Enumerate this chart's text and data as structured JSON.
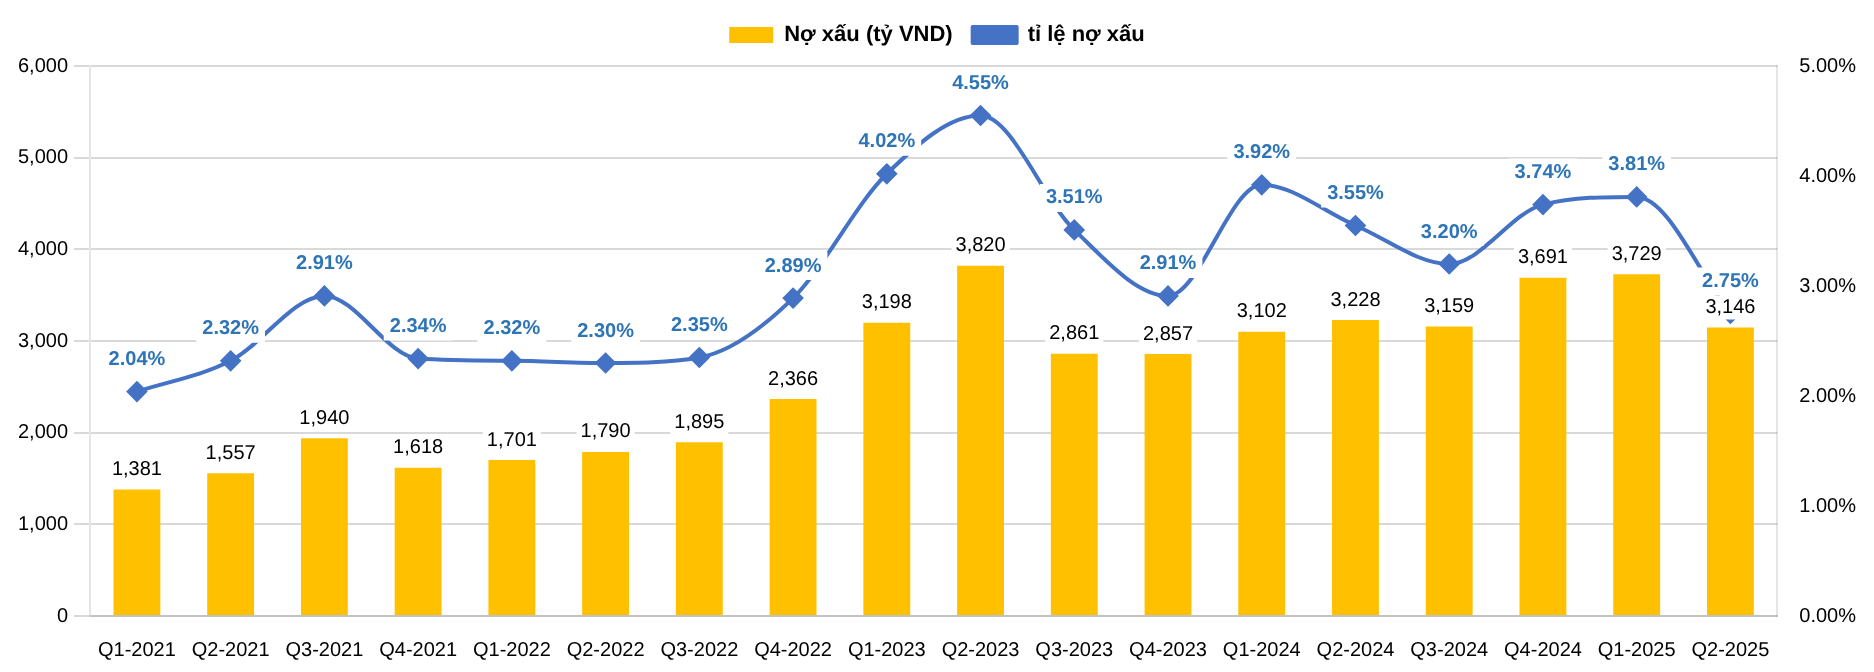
{
  "chart_data": {
    "type": "bar",
    "categories": [
      "Q1-2021",
      "Q2-2021",
      "Q3-2021",
      "Q4-2021",
      "Q1-2022",
      "Q2-2022",
      "Q3-2022",
      "Q4-2022",
      "Q1-2023",
      "Q2-2023",
      "Q3-2023",
      "Q4-2023",
      "Q1-2024",
      "Q2-2024",
      "Q3-2024",
      "Q4-2024",
      "Q1-2025",
      "Q2-2025"
    ],
    "series": [
      {
        "name": "Nợ xấu (tỷ VND)",
        "color": "#ffc000",
        "values": [
          1381,
          1557,
          1940,
          1618,
          1701,
          1790,
          1895,
          2366,
          3198,
          3820,
          2861,
          2857,
          3102,
          3228,
          3159,
          3691,
          3729,
          3146
        ],
        "value_labels": [
          "1,381",
          "1,557",
          "1,940",
          "1,618",
          "1,701",
          "1,790",
          "1,895",
          "2,366",
          "3,198",
          "3,820",
          "2,861",
          "2,857",
          "3,102",
          "3,228",
          "3,159",
          "3,691",
          "3,729",
          "3,146"
        ]
      },
      {
        "name": "tỉ lệ nợ xấu",
        "type": "line",
        "axis": "y2",
        "color": "#4472c4",
        "marker": "diamond",
        "values": [
          2.04,
          2.32,
          2.91,
          2.34,
          2.32,
          2.3,
          2.35,
          2.89,
          4.02,
          4.55,
          3.51,
          2.91,
          3.92,
          3.55,
          3.2,
          3.74,
          3.81,
          2.75
        ],
        "value_labels": [
          "2.04%",
          "2.32%",
          "2.91%",
          "2.34%",
          "2.32%",
          "2.30%",
          "2.35%",
          "2.89%",
          "4.02%",
          "4.55%",
          "3.51%",
          "2.91%",
          "3.92%",
          "3.55%",
          "3.20%",
          "3.74%",
          "3.81%",
          "2.75%"
        ]
      }
    ],
    "ylim": [
      0,
      6000
    ],
    "yticks": [
      0,
      {
        "value": 1000,
        "label": "1,000"
      },
      {
        "value": 2000,
        "label": "2,000"
      },
      {
        "value": 3000,
        "label": "3,000"
      },
      {
        "value": 4000,
        "label": "4,000"
      },
      {
        "value": 5000,
        "label": "5,000"
      },
      {
        "value": 6000,
        "label": "6,000"
      }
    ],
    "y2lim": [
      0,
      5
    ],
    "y2ticks": [
      {
        "value": 0,
        "label": "0.00%"
      },
      {
        "value": 1,
        "label": "1.00%"
      },
      {
        "value": 2,
        "label": "2.00%"
      },
      {
        "value": 3,
        "label": "3.00%"
      },
      {
        "value": 4,
        "label": "4.00%"
      },
      {
        "value": 5,
        "label": "5.00%"
      }
    ],
    "grid": "y",
    "legend": "top"
  }
}
